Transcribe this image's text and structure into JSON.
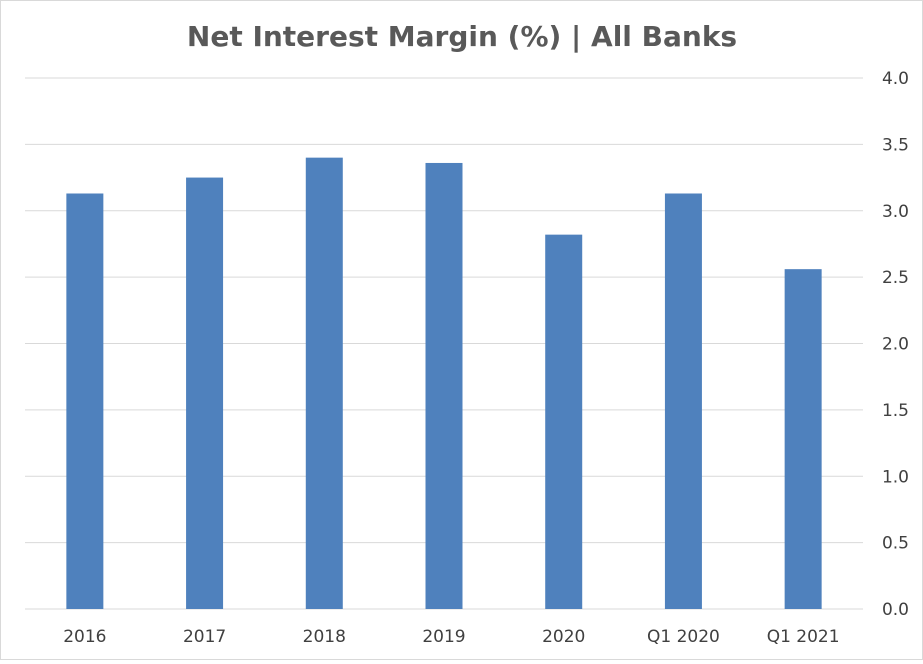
{
  "chart_data": {
    "type": "bar",
    "title": "Net Interest Margin (%) | All Banks",
    "categories": [
      "2016",
      "2017",
      "2018",
      "2019",
      "2020",
      "Q1 2020",
      "Q1 2021"
    ],
    "values": [
      3.13,
      3.25,
      3.4,
      3.36,
      2.82,
      3.13,
      2.56
    ],
    "xlabel": "",
    "ylabel": "",
    "ylim": [
      0,
      4.0
    ],
    "yticks": [
      "0.0",
      "0.5",
      "1.0",
      "1.5",
      "2.0",
      "2.5",
      "3.0",
      "3.5",
      "4.0"
    ],
    "y_axis_side": "right",
    "grid": true,
    "legend": "none",
    "bar_color": "#4f81bd"
  }
}
